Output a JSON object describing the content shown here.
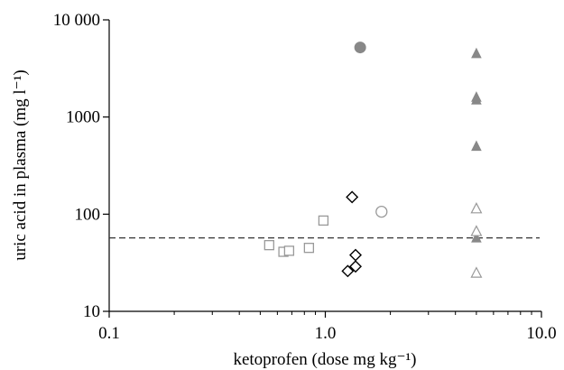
{
  "chart_data": {
    "type": "scatter",
    "xscale": "log",
    "yscale": "log",
    "xlim": [
      0.1,
      10.0
    ],
    "ylim": [
      10,
      10000
    ],
    "xlabel": "ketoprofen (dose mg kg⁻¹)",
    "ylabel": "uric acid in plasma (mg l⁻¹)",
    "x_ticks": [
      {
        "value": 0.1,
        "label": "0.1"
      },
      {
        "value": 1.0,
        "label": "1.0"
      },
      {
        "value": 10.0,
        "label": "10.0"
      }
    ],
    "y_ticks": [
      {
        "value": 10,
        "label": "10"
      },
      {
        "value": 100,
        "label": "100"
      },
      {
        "value": 1000,
        "label": "1000"
      },
      {
        "value": 10000,
        "label": "10 000"
      }
    ],
    "reference_line": {
      "y": 57,
      "style": "dashed"
    },
    "series": [
      {
        "marker": "square-open",
        "color": "#999999",
        "points": [
          [
            0.55,
            48
          ],
          [
            0.64,
            41
          ],
          [
            0.68,
            42
          ],
          [
            0.84,
            45
          ],
          [
            0.98,
            86
          ]
        ]
      },
      {
        "marker": "diamond-open",
        "color": "#000000",
        "points": [
          [
            1.27,
            26
          ],
          [
            1.33,
            150
          ],
          [
            1.38,
            29
          ],
          [
            1.38,
            38
          ]
        ]
      },
      {
        "marker": "circle-open",
        "color": "#999999",
        "points": [
          [
            1.82,
            106
          ]
        ]
      },
      {
        "marker": "circle-filled",
        "color": "#888888",
        "points": [
          [
            1.45,
            5200
          ]
        ]
      },
      {
        "marker": "triangle-filled",
        "color": "#888888",
        "points": [
          [
            5.0,
            4500
          ],
          [
            5.0,
            1600
          ],
          [
            5.0,
            1500
          ],
          [
            5.0,
            500
          ],
          [
            5.0,
            57
          ]
        ]
      },
      {
        "marker": "triangle-open",
        "color": "#999999",
        "points": [
          [
            5.0,
            115
          ],
          [
            5.0,
            67
          ],
          [
            5.0,
            25
          ]
        ]
      }
    ]
  }
}
